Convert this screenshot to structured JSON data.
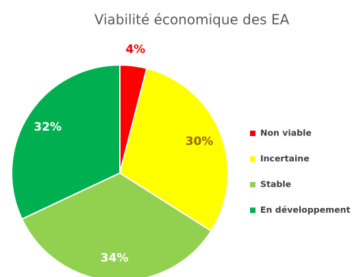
{
  "chart_data": {
    "type": "pie",
    "title": "Viabilité économique des EA",
    "categories": [
      "Non viable",
      "Incertaine",
      "Stable",
      "En développement"
    ],
    "values": [
      4,
      30,
      34,
      32
    ],
    "value_labels": [
      "4%",
      "30%",
      "34%",
      "32%"
    ],
    "colors": [
      "#ff0000",
      "#ffff00",
      "#92d050",
      "#00b050"
    ],
    "label_colors": [
      "#ff0000",
      "#9c6500",
      "#ffffff",
      "#ffffff"
    ],
    "legend": "right"
  }
}
